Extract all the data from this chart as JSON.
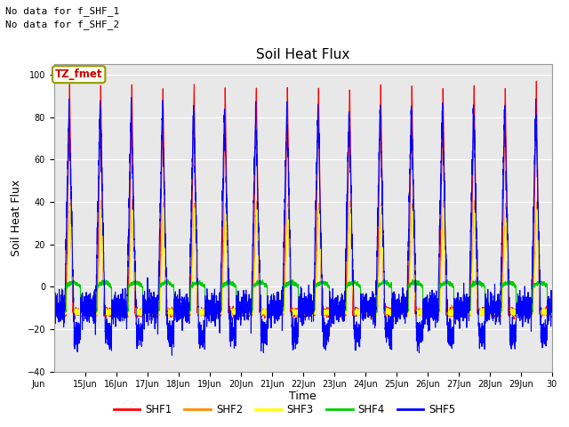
{
  "title": "Soil Heat Flux",
  "ylabel": "Soil Heat Flux",
  "xlabel": "Time",
  "note1": "No data for f_SHF_1",
  "note2": "No data for f_SHF_2",
  "tz_label": "TZ_fmet",
  "ylim": [
    -40,
    105
  ],
  "yticks": [
    -40,
    -20,
    0,
    20,
    40,
    60,
    80,
    100
  ],
  "colors": {
    "SHF1": "#ff0000",
    "SHF2": "#ff8c00",
    "SHF3": "#ffff00",
    "SHF4": "#00cc00",
    "SHF5": "#0000ff"
  },
  "n_days": 16,
  "start_day": 14,
  "points_per_day": 288
}
